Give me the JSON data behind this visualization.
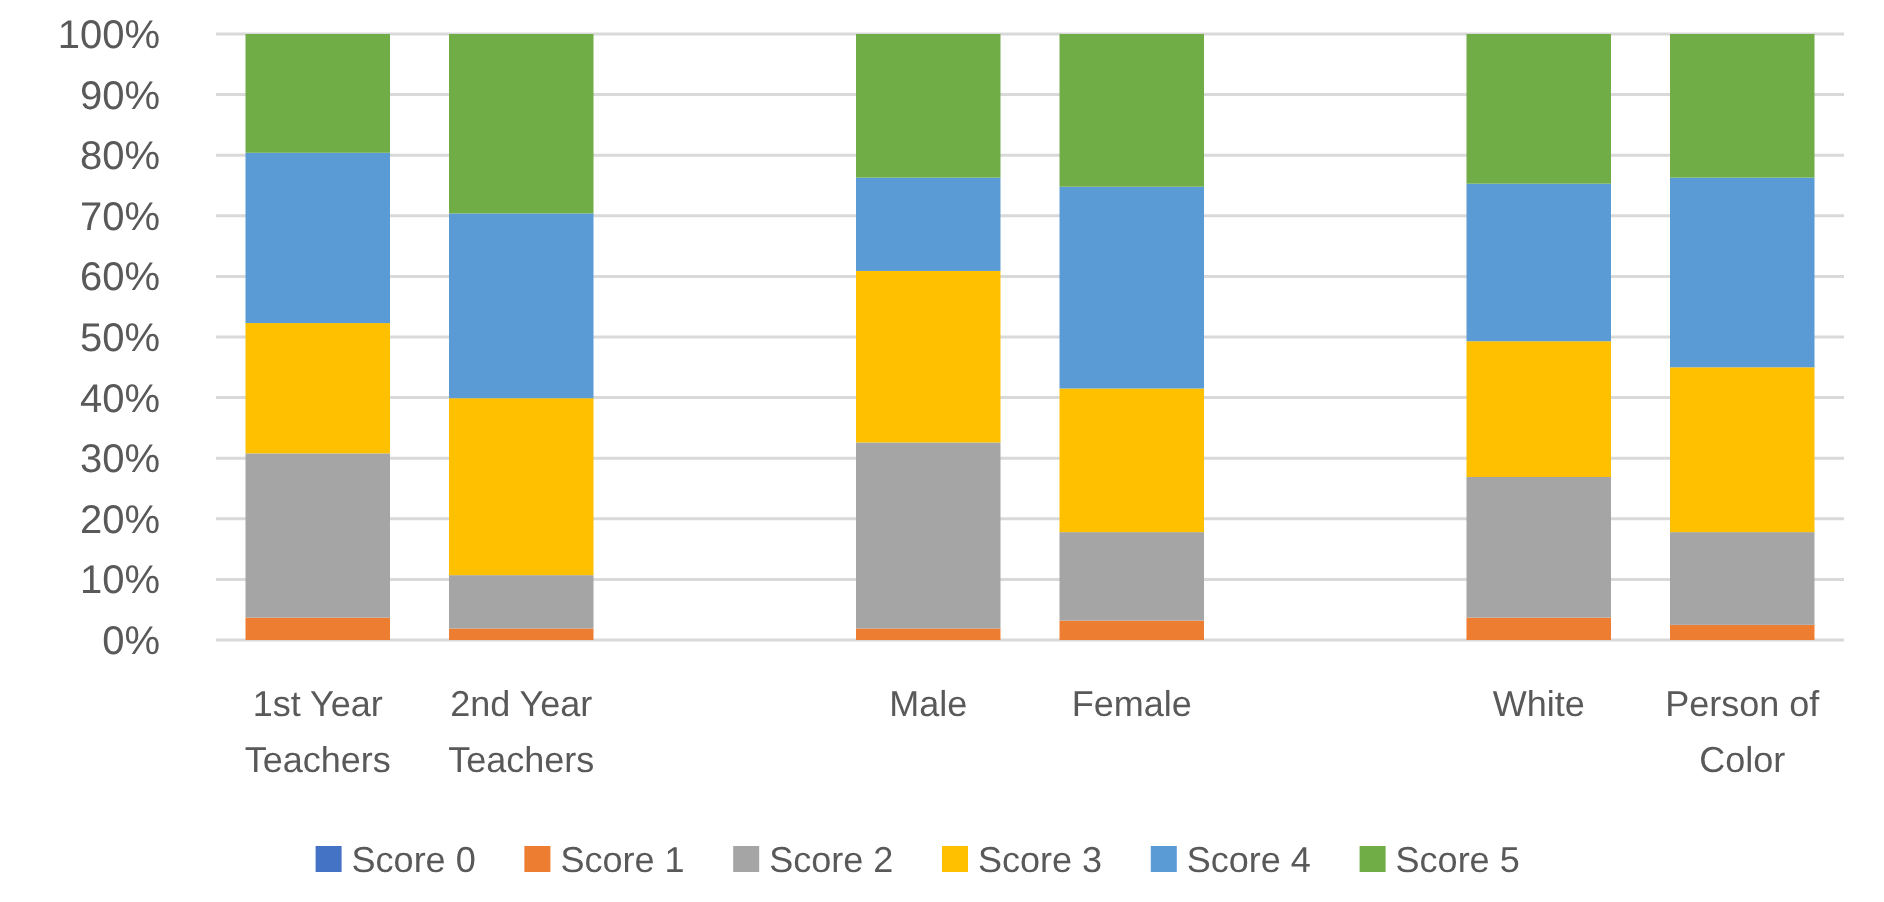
{
  "chart_data": {
    "type": "bar",
    "stacked": true,
    "categories": [
      "1st Year Teachers",
      "2nd Year Teachers",
      null,
      "Male",
      "Female",
      null,
      "White",
      "Person of Color"
    ],
    "series": [
      {
        "name": "Score 0",
        "color": "#4472c4",
        "values": [
          0,
          0,
          null,
          0,
          0,
          null,
          0,
          0
        ]
      },
      {
        "name": "Score 1",
        "color": "#ed7d31",
        "values": [
          3.7,
          1.9,
          null,
          1.9,
          3.2,
          null,
          3.7,
          2.5
        ]
      },
      {
        "name": "Score 2",
        "color": "#a5a5a5",
        "values": [
          27.1,
          8.8,
          null,
          30.7,
          14.6,
          null,
          23.2,
          15.3
        ]
      },
      {
        "name": "Score 3",
        "color": "#ffc000",
        "values": [
          21.5,
          29.2,
          null,
          28.3,
          23.7,
          null,
          22.4,
          27.2
        ]
      },
      {
        "name": "Score 4",
        "color": "#5b9bd5",
        "values": [
          28.1,
          30.5,
          null,
          15.4,
          33.3,
          null,
          26.0,
          31.3
        ]
      },
      {
        "name": "Score 5",
        "color": "#70ad47",
        "values": [
          19.6,
          29.6,
          null,
          23.7,
          25.2,
          null,
          24.7,
          23.7
        ]
      }
    ],
    "ylim": [
      0,
      100
    ],
    "yticks": [
      {
        "value": 0,
        "label": "0%"
      },
      {
        "value": 10,
        "label": "10%"
      },
      {
        "value": 20,
        "label": "20%"
      },
      {
        "value": 30,
        "label": "30%"
      },
      {
        "value": 40,
        "label": "40%"
      },
      {
        "value": 50,
        "label": "50%"
      },
      {
        "value": 60,
        "label": "60%"
      },
      {
        "value": 70,
        "label": "70%"
      },
      {
        "value": 80,
        "label": "80%"
      },
      {
        "value": 90,
        "label": "90%"
      },
      {
        "value": 100,
        "label": "100%"
      }
    ],
    "grid": "y",
    "legend": "bottom"
  }
}
